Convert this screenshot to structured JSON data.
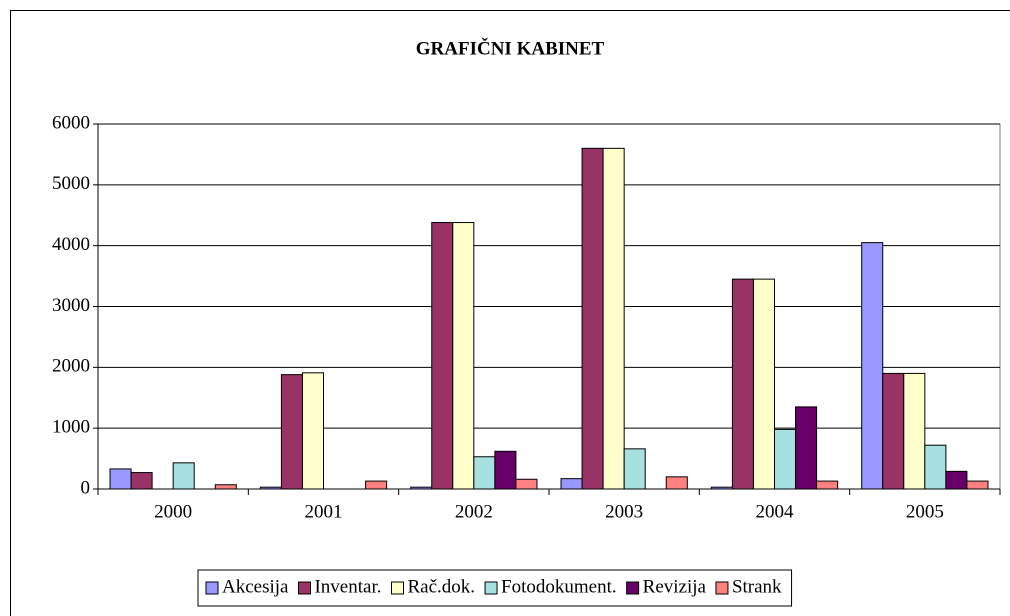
{
  "chart_data": {
    "type": "bar",
    "title": "GRAFIČNI KABINET",
    "categories": [
      "2000",
      "2001",
      "2002",
      "2003",
      "2004",
      "2005"
    ],
    "series": [
      {
        "name": "Akcesija",
        "color": "#9999ff",
        "values": [
          330,
          30,
          30,
          170,
          30,
          4050
        ]
      },
      {
        "name": "Inventar.",
        "color": "#993366",
        "values": [
          270,
          1880,
          4380,
          5600,
          3450,
          1900
        ]
      },
      {
        "name": "Rač.dok.",
        "color": "#ffffcc",
        "values": [
          0,
          1910,
          4380,
          5600,
          3450,
          1900
        ]
      },
      {
        "name": "Fotodokument.",
        "color": "#a6e0e0",
        "values": [
          430,
          0,
          530,
          660,
          980,
          720
        ]
      },
      {
        "name": "Revizija",
        "color": "#660066",
        "values": [
          0,
          0,
          620,
          0,
          1350,
          290
        ]
      },
      {
        "name": "Strank",
        "color": "#ff8080",
        "values": [
          70,
          130,
          160,
          200,
          130,
          130
        ]
      }
    ],
    "ylim": [
      0,
      6000
    ],
    "yticks": [
      0,
      1000,
      2000,
      3000,
      4000,
      5000,
      6000
    ],
    "grid": true,
    "legend": "bottom"
  }
}
